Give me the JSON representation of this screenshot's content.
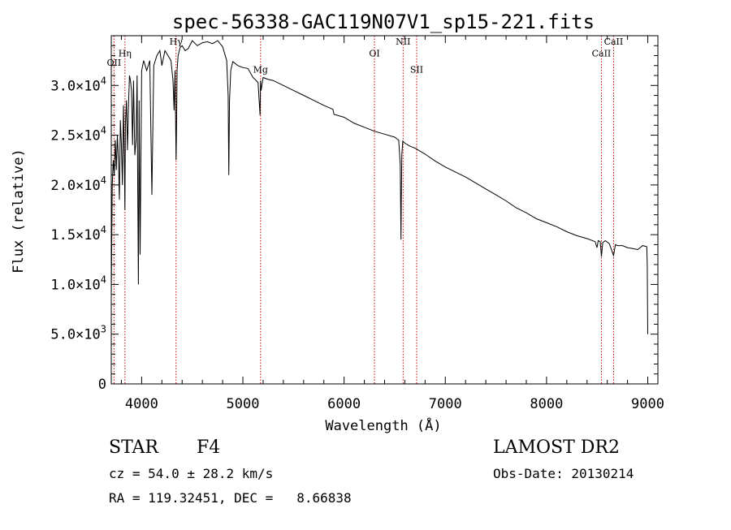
{
  "title": "spec-56338-GAC119N07V1_sp15-221.fits",
  "info": {
    "class_label": "STAR",
    "subclass": "F4",
    "survey": "LAMOST DR2",
    "cz": "cz = 54.0 ± 28.2 km/s",
    "obs_date": "Obs-Date: 20130214",
    "radec": "RA = 119.32451, DEC =   8.66838"
  },
  "chart_data": {
    "type": "line",
    "title": "spec-56338-GAC119N07V1_sp15-221.fits",
    "xlabel": "Wavelength (Å)",
    "ylabel": "Flux (relative)",
    "xlim": [
      3700,
      9100
    ],
    "ylim": [
      0,
      35000
    ],
    "xticks": [
      "4000",
      "5000",
      "6000",
      "7000",
      "8000",
      "9000"
    ],
    "xtick_values": [
      4000,
      5000,
      6000,
      7000,
      8000,
      9000
    ],
    "yticks": [
      {
        "value": 0,
        "mantissa": "0",
        "exp": ""
      },
      {
        "value": 5000,
        "mantissa": "5.0×10",
        "exp": "3"
      },
      {
        "value": 10000,
        "mantissa": "1.0×10",
        "exp": "4"
      },
      {
        "value": 15000,
        "mantissa": "1.5×10",
        "exp": "4"
      },
      {
        "value": 20000,
        "mantissa": "2.0×10",
        "exp": "4"
      },
      {
        "value": 25000,
        "mantissa": "2.5×10",
        "exp": "4"
      },
      {
        "value": 30000,
        "mantissa": "3.0×10",
        "exp": "4"
      }
    ],
    "line_color": "#000000",
    "marker_color": "#cc0000",
    "spectrum": {
      "x": [
        3700,
        3710,
        3720,
        3730,
        3740,
        3750,
        3760,
        3770,
        3780,
        3790,
        3800,
        3810,
        3820,
        3830,
        3835,
        3840,
        3850,
        3860,
        3870,
        3880,
        3889,
        3900,
        3910,
        3920,
        3933,
        3945,
        3955,
        3962,
        3968,
        3975,
        3985,
        4000,
        4020,
        4050,
        4080,
        4101,
        4120,
        4150,
        4180,
        4200,
        4230,
        4260,
        4290,
        4310,
        4320,
        4330,
        4340,
        4345,
        4350,
        4360,
        4380,
        4400,
        4430,
        4460,
        4500,
        4550,
        4600,
        4650,
        4700,
        4750,
        4800,
        4840,
        4855,
        4861,
        4868,
        4880,
        4900,
        4950,
        5000,
        5050,
        5100,
        5150,
        5170,
        5175,
        5180,
        5200,
        5250,
        5300,
        5400,
        5500,
        5600,
        5700,
        5800,
        5890,
        5900,
        6000,
        6100,
        6200,
        6300,
        6400,
        6500,
        6540,
        6555,
        6562,
        6565,
        6570,
        6580,
        6600,
        6650,
        6700,
        6800,
        6900,
        7000,
        7100,
        7200,
        7300,
        7400,
        7500,
        7600,
        7700,
        7800,
        7900,
        8000,
        8100,
        8200,
        8300,
        8400,
        8480,
        8498,
        8510,
        8530,
        8542,
        8555,
        8580,
        8620,
        8662,
        8680,
        8700,
        8750,
        8800,
        8850,
        8900,
        8950,
        8990,
        8995,
        9000
      ],
      "y": [
        9000,
        20000,
        22500,
        21000,
        24500,
        21500,
        25000,
        22800,
        18500,
        26500,
        24000,
        20000,
        28000,
        22000,
        17500,
        26000,
        28500,
        23500,
        28000,
        31000,
        30500,
        29500,
        24000,
        30500,
        23000,
        24500,
        31000,
        18000,
        10000,
        28500,
        13000,
        31500,
        32500,
        31500,
        32500,
        19000,
        32000,
        33000,
        33500,
        32000,
        33500,
        33000,
        32500,
        30500,
        27500,
        31500,
        22500,
        26000,
        31500,
        33000,
        33800,
        34000,
        33500,
        33700,
        34500,
        34000,
        34300,
        34400,
        34200,
        34500,
        33900,
        32500,
        29000,
        21000,
        28500,
        31500,
        32400,
        32000,
        31800,
        31700,
        30800,
        30300,
        27000,
        30500,
        29500,
        30800,
        30600,
        30500,
        30000,
        29500,
        29000,
        28500,
        28000,
        27600,
        27100,
        26800,
        26200,
        25800,
        25400,
        25100,
        24800,
        24500,
        22000,
        14500,
        18500,
        23000,
        24400,
        24200,
        23900,
        23700,
        23100,
        22400,
        21800,
        21300,
        20800,
        20200,
        19600,
        19000,
        18400,
        17700,
        17200,
        16600,
        16200,
        15800,
        15300,
        14900,
        14600,
        14300,
        13700,
        14400,
        14300,
        12800,
        14200,
        14400,
        14100,
        12900,
        14000,
        13900,
        13900,
        13700,
        13600,
        13500,
        13900,
        13800,
        12000,
        5000
      ]
    },
    "lines": [
      {
        "label": "OII",
        "wave": 3727,
        "label_y": 32000
      },
      {
        "label": "Hη",
        "wave": 3835,
        "label_y": 32900
      },
      {
        "label": "Hγ",
        "wave": 4340,
        "label_y": 34100
      },
      {
        "label": "Mg",
        "wave": 5175,
        "label_y": 31300
      },
      {
        "label": "OI",
        "wave": 6300,
        "label_y": 32900
      },
      {
        "label": "NII",
        "wave": 6583,
        "label_y": 34100
      },
      {
        "label": "SII",
        "wave": 6717,
        "label_y": 31300
      },
      {
        "label": "CaII",
        "wave": 8542,
        "label_y": 32900
      },
      {
        "label": "CaII",
        "wave": 8662,
        "label_y": 34100
      }
    ]
  }
}
